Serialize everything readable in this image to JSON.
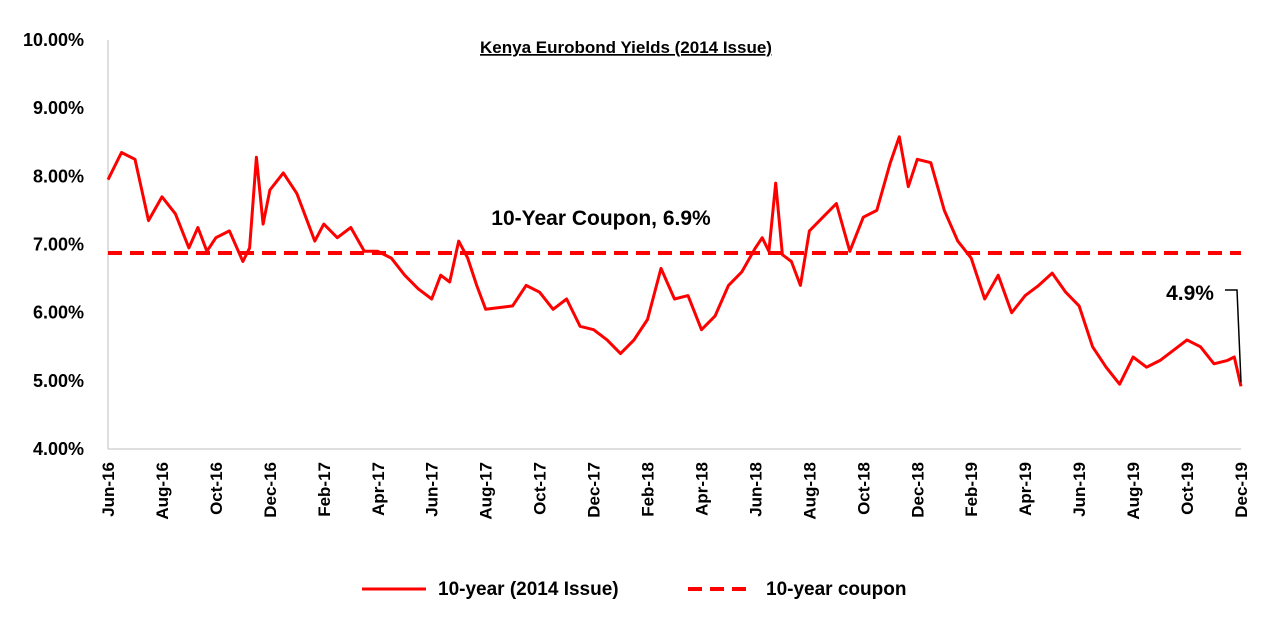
{
  "chart_data": {
    "type": "line",
    "title": "Kenya Eurobond Yields (2014 Issue)",
    "xlabel": "",
    "ylabel": "",
    "ylim": [
      4.0,
      10.0
    ],
    "y_ticks": [
      "4.00%",
      "5.00%",
      "6.00%",
      "7.00%",
      "8.00%",
      "9.00%",
      "10.00%"
    ],
    "x_ticks": [
      "Jun-16",
      "Aug-16",
      "Oct-16",
      "Dec-16",
      "Feb-17",
      "Apr-17",
      "Jun-17",
      "Aug-17",
      "Oct-17",
      "Dec-17",
      "Feb-18",
      "Apr-18",
      "Jun-18",
      "Aug-18",
      "Oct-18",
      "Dec-18",
      "Feb-19",
      "Apr-19",
      "Jun-19",
      "Aug-19",
      "Oct-19",
      "Dec-19"
    ],
    "grid": false,
    "legend_position": "bottom",
    "series": [
      {
        "name": "10-year (2014 Issue)",
        "color": "#ff0000",
        "style": "solid",
        "points": [
          [
            "Jun-16",
            7.95
          ],
          [
            "Jun-16",
            8.35
          ],
          [
            "Jul-16",
            8.25
          ],
          [
            "Jul-16",
            7.35
          ],
          [
            "Aug-16",
            7.7
          ],
          [
            "Aug-16",
            7.45
          ],
          [
            "Sep-16",
            6.95
          ],
          [
            "Sep-16",
            7.25
          ],
          [
            "Sep-16",
            6.9
          ],
          [
            "Oct-16",
            7.1
          ],
          [
            "Oct-16",
            7.2
          ],
          [
            "Nov-16",
            6.75
          ],
          [
            "Nov-16",
            6.95
          ],
          [
            "Nov-16",
            8.28
          ],
          [
            "Nov-16",
            7.3
          ],
          [
            "Dec-16",
            7.8
          ],
          [
            "Dec-16",
            8.05
          ],
          [
            "Jan-17",
            7.75
          ],
          [
            "Jan-17",
            7.4
          ],
          [
            "Jan-17",
            7.05
          ],
          [
            "Feb-17",
            7.3
          ],
          [
            "Feb-17",
            7.1
          ],
          [
            "Mar-17",
            7.25
          ],
          [
            "Mar-17",
            6.9
          ],
          [
            "Apr-17",
            6.9
          ],
          [
            "Apr-17",
            6.8
          ],
          [
            "May-17",
            6.55
          ],
          [
            "May-17",
            6.35
          ],
          [
            "Jun-17",
            6.2
          ],
          [
            "Jun-17",
            6.55
          ],
          [
            "Jun-17",
            6.45
          ],
          [
            "Jul-17",
            7.05
          ],
          [
            "Jul-17",
            6.8
          ],
          [
            "Jul-17",
            6.4
          ],
          [
            "Aug-17",
            6.05
          ],
          [
            "Sep-17",
            6.1
          ],
          [
            "Sep-17",
            6.4
          ],
          [
            "Oct-17",
            6.3
          ],
          [
            "Oct-17",
            6.05
          ],
          [
            "Nov-17",
            6.2
          ],
          [
            "Nov-17",
            5.8
          ],
          [
            "Dec-17",
            5.75
          ],
          [
            "Dec-17",
            5.6
          ],
          [
            "Jan-18",
            5.4
          ],
          [
            "Jan-18",
            5.6
          ],
          [
            "Feb-18",
            5.9
          ],
          [
            "Feb-18",
            6.65
          ],
          [
            "Mar-18",
            6.2
          ],
          [
            "Mar-18",
            6.25
          ],
          [
            "Apr-18",
            5.75
          ],
          [
            "Apr-18",
            5.95
          ],
          [
            "May-18",
            6.4
          ],
          [
            "May-18",
            6.6
          ],
          [
            "Jun-18",
            6.95
          ],
          [
            "Jun-18",
            7.1
          ],
          [
            "Jun-18",
            6.9
          ],
          [
            "Jun-18",
            7.9
          ],
          [
            "Jul-18",
            6.85
          ],
          [
            "Jul-18",
            6.75
          ],
          [
            "Jul-18",
            6.4
          ],
          [
            "Aug-18",
            7.2
          ],
          [
            "Aug-18",
            7.4
          ],
          [
            "Sep-18",
            7.6
          ],
          [
            "Sep-18",
            6.9
          ],
          [
            "Oct-18",
            7.4
          ],
          [
            "Oct-18",
            7.5
          ],
          [
            "Nov-18",
            8.2
          ],
          [
            "Nov-18",
            8.58
          ],
          [
            "Nov-18",
            7.85
          ],
          [
            "Dec-18",
            8.25
          ],
          [
            "Dec-18",
            8.2
          ],
          [
            "Jan-19",
            7.5
          ],
          [
            "Jan-19",
            7.05
          ],
          [
            "Feb-19",
            6.8
          ],
          [
            "Feb-19",
            6.2
          ],
          [
            "Mar-19",
            6.55
          ],
          [
            "Mar-19",
            6.0
          ],
          [
            "Apr-19",
            6.25
          ],
          [
            "Apr-19",
            6.4
          ],
          [
            "May-19",
            6.58
          ],
          [
            "May-19",
            6.3
          ],
          [
            "Jun-19",
            6.1
          ],
          [
            "Jun-19",
            5.5
          ],
          [
            "Jul-19",
            5.2
          ],
          [
            "Jul-19",
            4.95
          ],
          [
            "Aug-19",
            5.35
          ],
          [
            "Aug-19",
            5.2
          ],
          [
            "Sep-19",
            5.3
          ],
          [
            "Sep-19",
            5.45
          ],
          [
            "Oct-19",
            5.6
          ],
          [
            "Oct-19",
            5.5
          ],
          [
            "Nov-19",
            5.25
          ],
          [
            "Nov-19",
            5.3
          ],
          [
            "Dec-19",
            5.35
          ],
          [
            "Dec-19",
            4.92
          ]
        ]
      },
      {
        "name": "10-year coupon",
        "color": "#ff0000",
        "style": "dashed",
        "value": 6.875
      }
    ],
    "annotations": [
      {
        "text": "10-Year Coupon, 6.9%"
      },
      {
        "text": "4.9%"
      }
    ]
  }
}
